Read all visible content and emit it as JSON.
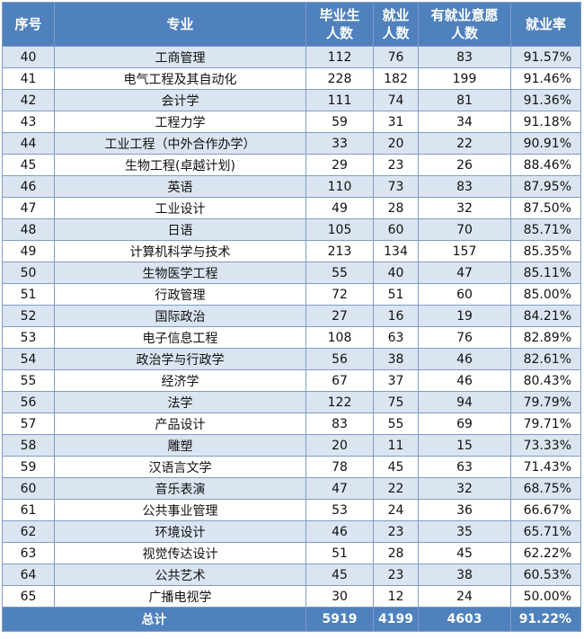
{
  "table": {
    "header": [
      [
        "序号"
      ],
      [
        "专业"
      ],
      [
        "毕业生",
        "人数"
      ],
      [
        "就业",
        "人数"
      ],
      [
        "有就业意愿",
        "人数"
      ],
      [
        "就业率"
      ]
    ],
    "rows": [
      [
        40,
        "工商管理",
        112,
        76,
        83,
        "91.57%"
      ],
      [
        41,
        "电气工程及其自动化",
        228,
        182,
        199,
        "91.46%"
      ],
      [
        42,
        "会计学",
        111,
        74,
        81,
        "91.36%"
      ],
      [
        43,
        "工程力学",
        59,
        31,
        34,
        "91.18%"
      ],
      [
        44,
        "工业工程（中外合作办学）",
        33,
        20,
        22,
        "90.91%"
      ],
      [
        45,
        "生物工程(卓越计划)",
        29,
        23,
        26,
        "88.46%"
      ],
      [
        46,
        "英语",
        110,
        73,
        83,
        "87.95%"
      ],
      [
        47,
        "工业设计",
        49,
        28,
        32,
        "87.50%"
      ],
      [
        48,
        "日语",
        105,
        60,
        70,
        "85.71%"
      ],
      [
        49,
        "计算机科学与技术",
        213,
        134,
        157,
        "85.35%"
      ],
      [
        50,
        "生物医学工程",
        55,
        40,
        47,
        "85.11%"
      ],
      [
        51,
        "行政管理",
        72,
        51,
        60,
        "85.00%"
      ],
      [
        52,
        "国际政治",
        27,
        16,
        19,
        "84.21%"
      ],
      [
        53,
        "电子信息工程",
        108,
        63,
        76,
        "82.89%"
      ],
      [
        54,
        "政治学与行政学",
        56,
        38,
        46,
        "82.61%"
      ],
      [
        55,
        "经济学",
        67,
        37,
        46,
        "80.43%"
      ],
      [
        56,
        "法学",
        122,
        75,
        94,
        "79.79%"
      ],
      [
        57,
        "产品设计",
        83,
        55,
        69,
        "79.71%"
      ],
      [
        58,
        "雕塑",
        20,
        11,
        15,
        "73.33%"
      ],
      [
        59,
        "汉语言文学",
        78,
        45,
        63,
        "71.43%"
      ],
      [
        60,
        "音乐表演",
        47,
        22,
        32,
        "68.75%"
      ],
      [
        61,
        "公共事业管理",
        53,
        24,
        36,
        "66.67%"
      ],
      [
        62,
        "环境设计",
        46,
        23,
        35,
        "65.71%"
      ],
      [
        63,
        "视觉传达设计",
        51,
        28,
        45,
        "62.22%"
      ],
      [
        64,
        "公共艺术",
        45,
        23,
        38,
        "60.53%"
      ],
      [
        65,
        "广播电视学",
        30,
        12,
        24,
        "50.00%"
      ]
    ],
    "total": [
      "总计",
      5919,
      4199,
      4603,
      "91.22%"
    ]
  }
}
